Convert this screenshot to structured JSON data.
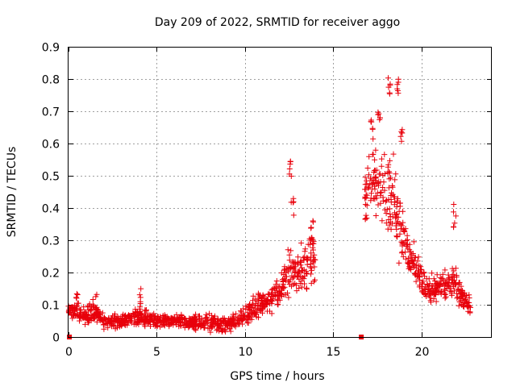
{
  "chart_data": {
    "type": "scatter",
    "title": "Day 209 of 2022, SRMTID for receiver aggo",
    "xlabel": "GPS time / hours",
    "ylabel": "SRMTID / TECUs",
    "xlim": [
      0,
      24
    ],
    "ylim": [
      0,
      0.9
    ],
    "xticks": [
      0,
      5,
      10,
      15,
      20
    ],
    "xtick_labels": [
      "0",
      "5",
      "10",
      "15",
      "20"
    ],
    "yticks": [
      0,
      0.1,
      0.2,
      0.3,
      0.4,
      0.5,
      0.6,
      0.7,
      0.8,
      0.9
    ],
    "ytick_labels": [
      "0",
      "0.1",
      "0.2",
      "0.3",
      "0.4",
      "0.5",
      "0.6",
      "0.7",
      "0.8",
      "0.9"
    ],
    "grid": true,
    "marker": "+",
    "color": "#e8000b",
    "gap_markers": [
      {
        "x": 0.05,
        "y": 0
      },
      {
        "x": 16.6,
        "y": 0
      }
    ],
    "series": [
      {
        "name": "SRMTID",
        "envelope": [
          {
            "x": 0.0,
            "median": 0.08,
            "spread": 0.03
          },
          {
            "x": 1.0,
            "median": 0.07,
            "spread": 0.04
          },
          {
            "x": 1.5,
            "median": 0.08,
            "spread": 0.05
          },
          {
            "x": 2.0,
            "median": 0.05,
            "spread": 0.03
          },
          {
            "x": 3.0,
            "median": 0.05,
            "spread": 0.03
          },
          {
            "x": 4.0,
            "median": 0.06,
            "spread": 0.04
          },
          {
            "x": 5.0,
            "median": 0.05,
            "spread": 0.03
          },
          {
            "x": 6.0,
            "median": 0.05,
            "spread": 0.03
          },
          {
            "x": 7.0,
            "median": 0.045,
            "spread": 0.03
          },
          {
            "x": 8.0,
            "median": 0.045,
            "spread": 0.035
          },
          {
            "x": 9.0,
            "median": 0.04,
            "spread": 0.03
          },
          {
            "x": 10.0,
            "median": 0.06,
            "spread": 0.04
          },
          {
            "x": 10.5,
            "median": 0.09,
            "spread": 0.05
          },
          {
            "x": 11.0,
            "median": 0.1,
            "spread": 0.05
          },
          {
            "x": 11.5,
            "median": 0.12,
            "spread": 0.06
          },
          {
            "x": 12.0,
            "median": 0.13,
            "spread": 0.07
          },
          {
            "x": 12.5,
            "median": 0.2,
            "spread": 0.12
          },
          {
            "x": 13.0,
            "median": 0.2,
            "spread": 0.1
          },
          {
            "x": 13.5,
            "median": 0.22,
            "spread": 0.1
          },
          {
            "x": 14.0,
            "median": 0.25,
            "spread": 0.1
          },
          {
            "x": 16.8,
            "median": 0.45,
            "spread": 0.15
          },
          {
            "x": 17.3,
            "median": 0.5,
            "spread": 0.15
          },
          {
            "x": 17.8,
            "median": 0.45,
            "spread": 0.15
          },
          {
            "x": 18.3,
            "median": 0.45,
            "spread": 0.2
          },
          {
            "x": 18.8,
            "median": 0.35,
            "spread": 0.15
          },
          {
            "x": 19.3,
            "median": 0.25,
            "spread": 0.08
          },
          {
            "x": 19.8,
            "median": 0.2,
            "spread": 0.08
          },
          {
            "x": 20.3,
            "median": 0.15,
            "spread": 0.06
          },
          {
            "x": 20.8,
            "median": 0.15,
            "spread": 0.06
          },
          {
            "x": 21.3,
            "median": 0.16,
            "spread": 0.06
          },
          {
            "x": 21.8,
            "median": 0.18,
            "spread": 0.08
          },
          {
            "x": 22.3,
            "median": 0.12,
            "spread": 0.05
          },
          {
            "x": 22.8,
            "median": 0.09,
            "spread": 0.04
          }
        ],
        "peaks": [
          {
            "x": 12.6,
            "y": 0.56
          },
          {
            "x": 12.7,
            "y": 0.45
          },
          {
            "x": 13.8,
            "y": 0.37
          },
          {
            "x": 17.2,
            "y": 0.69
          },
          {
            "x": 17.6,
            "y": 0.7
          },
          {
            "x": 18.2,
            "y": 0.83
          },
          {
            "x": 18.7,
            "y": 0.83
          },
          {
            "x": 18.9,
            "y": 0.65
          },
          {
            "x": 21.9,
            "y": 0.42
          },
          {
            "x": 0.5,
            "y": 0.14
          },
          {
            "x": 1.6,
            "y": 0.15
          },
          {
            "x": 4.1,
            "y": 0.15
          }
        ]
      }
    ]
  }
}
